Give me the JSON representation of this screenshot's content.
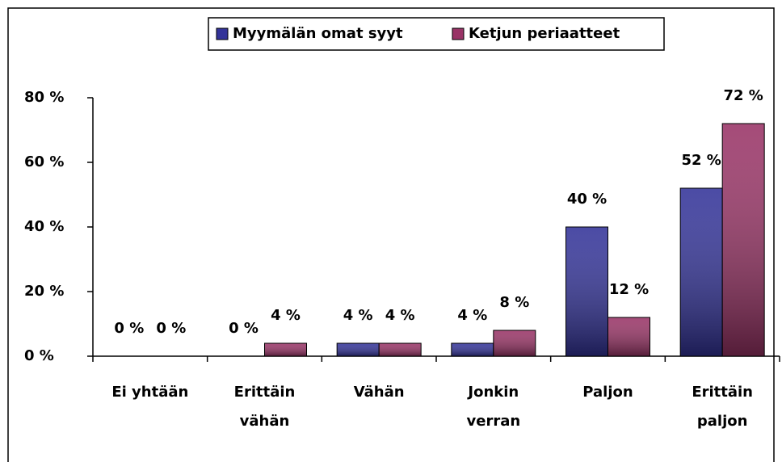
{
  "chart_data": {
    "type": "bar",
    "categories": [
      "Ei yhtään",
      "Erittäin\nvähän",
      "Vähän",
      "Jonkin\nverran",
      "Paljon",
      "Erittäin\npaljon"
    ],
    "series": [
      {
        "name": "Myymälän omat syyt",
        "color": "#333399",
        "values": [
          0,
          0,
          4,
          4,
          40,
          52
        ],
        "value_labels": [
          "0 %",
          "0 %",
          "4 %",
          "4 %",
          "40 %",
          "52 %"
        ]
      },
      {
        "name": "Ketjun periaatteet",
        "color": "#993366",
        "values": [
          0,
          4,
          4,
          8,
          12,
          72
        ],
        "value_labels": [
          "0 %",
          "4 %",
          "4 %",
          "8 %",
          "12 %",
          "72 %"
        ]
      }
    ],
    "ylim": [
      0,
      80
    ],
    "yticks": [
      {
        "value": 0,
        "label": "0 %"
      },
      {
        "value": 20,
        "label": "20 %"
      },
      {
        "value": 40,
        "label": "40 %"
      },
      {
        "value": 60,
        "label": "60 %"
      },
      {
        "value": 80,
        "label": "80 %"
      }
    ],
    "legend": "top"
  }
}
